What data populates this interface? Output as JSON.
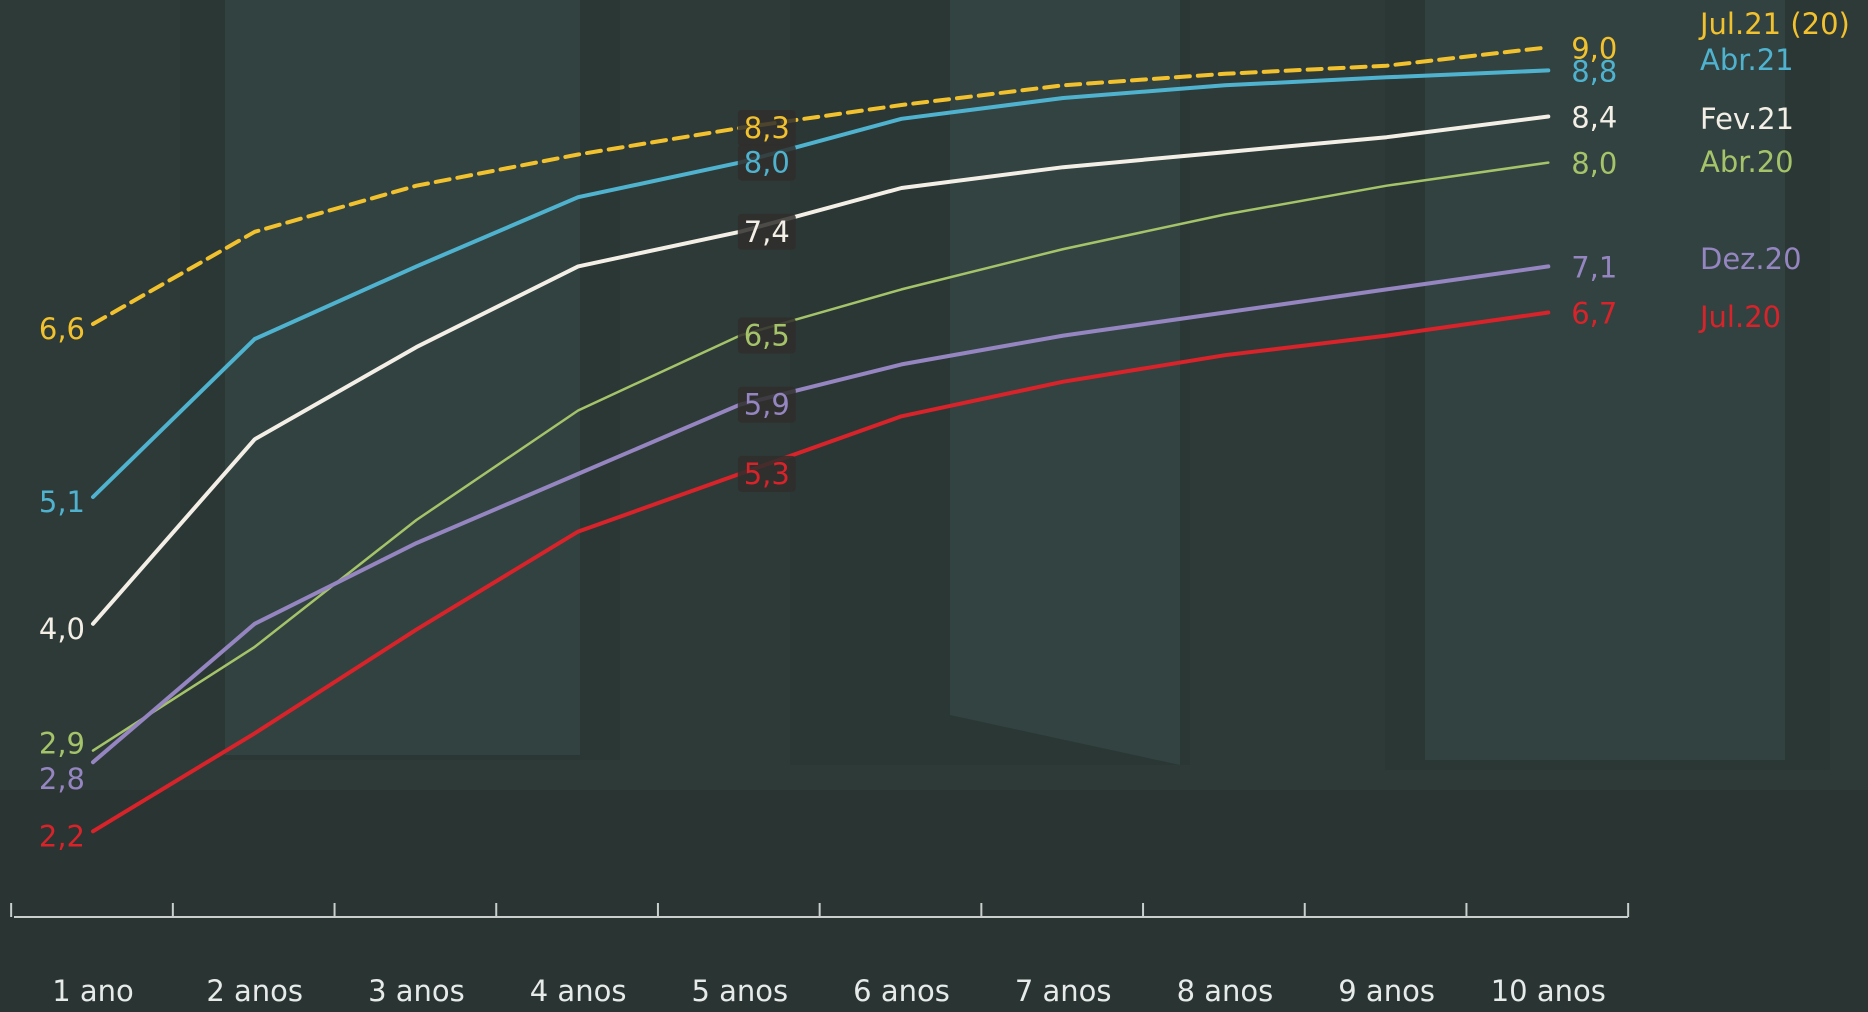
{
  "chart_data": {
    "type": "line",
    "categories": [
      "1 ano",
      "2 anos",
      "3 anos",
      "4 anos",
      "5 anos",
      "6 anos",
      "7 anos",
      "8 anos",
      "9 anos",
      "10 anos"
    ],
    "series": [
      {
        "name": "Jul.21 (20)",
        "color": "#f2c12e",
        "style": "dashed",
        "values": [
          6.6,
          7.4,
          7.8,
          8.07,
          8.3,
          8.5,
          8.67,
          8.77,
          8.84,
          9.0
        ],
        "value_labels": [
          "6,6",
          null,
          null,
          null,
          "8,3",
          null,
          null,
          null,
          null,
          "9,0"
        ]
      },
      {
        "name": "Abr.21",
        "color": "#4fb3d0",
        "style": "solid",
        "values": [
          5.1,
          6.47,
          7.1,
          7.7,
          8.0,
          8.38,
          8.56,
          8.67,
          8.74,
          8.8
        ],
        "value_labels": [
          "5,1",
          null,
          null,
          null,
          "8,0",
          null,
          null,
          null,
          null,
          "8,8"
        ]
      },
      {
        "name": "Fev.21",
        "color": "#f3efe6",
        "style": "solid",
        "values": [
          4.0,
          5.6,
          6.4,
          7.1,
          7.4,
          7.78,
          7.96,
          8.09,
          8.22,
          8.4
        ],
        "value_labels": [
          "4,0",
          null,
          null,
          null,
          "7,4",
          null,
          null,
          null,
          null,
          "8,4"
        ]
      },
      {
        "name": "Abr.20",
        "color": "#a5c46a",
        "style": "solid",
        "values": [
          2.9,
          3.8,
          4.9,
          5.85,
          6.5,
          6.9,
          7.25,
          7.55,
          7.8,
          8.0
        ],
        "value_labels": [
          "2,9",
          null,
          null,
          null,
          "6,5",
          null,
          null,
          null,
          null,
          "8,0"
        ]
      },
      {
        "name": "Dez.20",
        "color": "#9585c0",
        "style": "solid",
        "values": [
          2.8,
          4.0,
          4.7,
          5.3,
          5.9,
          6.25,
          6.5,
          6.7,
          6.9,
          7.1
        ],
        "value_labels": [
          "2,8",
          null,
          null,
          null,
          "5,9",
          null,
          null,
          null,
          null,
          "7,1"
        ]
      },
      {
        "name": "Jul.20",
        "color": "#d8232a",
        "style": "solid",
        "values": [
          2.2,
          3.05,
          3.95,
          4.8,
          5.3,
          5.8,
          6.1,
          6.33,
          6.5,
          6.7
        ],
        "value_labels": [
          "2,2",
          null,
          null,
          null,
          "5,3",
          null,
          null,
          null,
          null,
          "6,7"
        ]
      }
    ]
  }
}
